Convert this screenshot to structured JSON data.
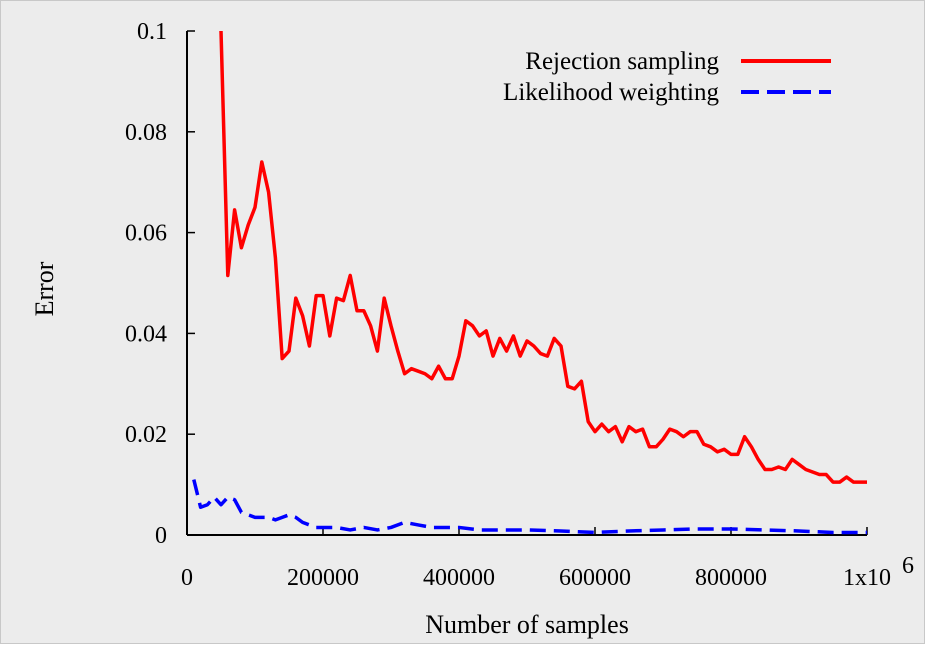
{
  "chart_data": {
    "type": "line",
    "title": "",
    "xlabel": "Number of samples",
    "ylabel": "Error",
    "xlim": [
      0,
      1000000
    ],
    "ylim": [
      0,
      0.1
    ],
    "x_ticks": [
      0,
      200000,
      400000,
      600000,
      800000,
      1000000
    ],
    "x_tick_labels": [
      "0",
      "200000",
      "400000",
      "600000",
      "800000",
      "1x10"
    ],
    "x_tick_last_exponent": "6",
    "y_ticks": [
      0,
      0.02,
      0.04,
      0.06,
      0.08,
      0.1
    ],
    "y_tick_labels": [
      "0",
      "0.02",
      "0.04",
      "0.06",
      "0.08",
      "0.1"
    ],
    "grid": false,
    "legend_position": "top-right",
    "series": [
      {
        "name": "Rejection sampling",
        "color": "#ff0000",
        "style": "solid",
        "x": [
          50000,
          60000,
          70000,
          80000,
          90000,
          100000,
          110000,
          120000,
          130000,
          140000,
          150000,
          160000,
          170000,
          180000,
          190000,
          200000,
          210000,
          220000,
          230000,
          240000,
          250000,
          260000,
          270000,
          280000,
          290000,
          300000,
          310000,
          320000,
          330000,
          340000,
          350000,
          360000,
          370000,
          380000,
          390000,
          400000,
          410000,
          420000,
          430000,
          440000,
          450000,
          460000,
          470000,
          480000,
          490000,
          500000,
          510000,
          520000,
          530000,
          540000,
          550000,
          560000,
          570000,
          580000,
          590000,
          600000,
          610000,
          620000,
          630000,
          640000,
          650000,
          660000,
          670000,
          680000,
          690000,
          700000,
          710000,
          720000,
          730000,
          740000,
          750000,
          760000,
          770000,
          780000,
          790000,
          800000,
          810000,
          820000,
          830000,
          840000,
          850000,
          860000,
          870000,
          880000,
          890000,
          900000,
          910000,
          920000,
          930000,
          940000,
          950000,
          960000,
          970000,
          980000,
          990000,
          1000000
        ],
        "y": [
          0.1,
          0.0515,
          0.0645,
          0.057,
          0.0615,
          0.065,
          0.074,
          0.068,
          0.055,
          0.035,
          0.0365,
          0.047,
          0.0435,
          0.0375,
          0.0475,
          0.0475,
          0.0395,
          0.047,
          0.0465,
          0.0515,
          0.0445,
          0.0445,
          0.0415,
          0.0365,
          0.047,
          0.0415,
          0.0365,
          0.032,
          0.033,
          0.0325,
          0.032,
          0.031,
          0.0335,
          0.031,
          0.031,
          0.0355,
          0.0425,
          0.0415,
          0.0395,
          0.0405,
          0.0355,
          0.039,
          0.0365,
          0.0395,
          0.0355,
          0.0385,
          0.0375,
          0.036,
          0.0355,
          0.039,
          0.0375,
          0.0295,
          0.029,
          0.0305,
          0.0225,
          0.0205,
          0.022,
          0.0205,
          0.0215,
          0.0185,
          0.0215,
          0.0205,
          0.021,
          0.0175,
          0.0175,
          0.019,
          0.021,
          0.0205,
          0.0195,
          0.0205,
          0.0205,
          0.018,
          0.0175,
          0.0165,
          0.017,
          0.016,
          0.016,
          0.0195,
          0.0175,
          0.015,
          0.013,
          0.013,
          0.0135,
          0.013,
          0.015,
          0.014,
          0.013,
          0.0125,
          0.012,
          0.012,
          0.0105,
          0.0105,
          0.0115,
          0.0105,
          0.0105,
          0.0105
        ]
      },
      {
        "name": "Likelihood weighting",
        "color": "#0000ff",
        "style": "dashed",
        "x": [
          10000,
          20000,
          30000,
          40000,
          50000,
          60000,
          70000,
          80000,
          90000,
          100000,
          110000,
          120000,
          130000,
          140000,
          150000,
          160000,
          170000,
          180000,
          190000,
          200000,
          220000,
          240000,
          260000,
          280000,
          300000,
          320000,
          340000,
          360000,
          380000,
          400000,
          430000,
          460000,
          500000,
          550000,
          600000,
          650000,
          700000,
          750000,
          800000,
          850000,
          900000,
          950000,
          1000000
        ],
        "y": [
          0.011,
          0.0055,
          0.006,
          0.0075,
          0.006,
          0.0075,
          0.007,
          0.0045,
          0.004,
          0.0035,
          0.0035,
          0.0035,
          0.003,
          0.0035,
          0.004,
          0.0035,
          0.0025,
          0.002,
          0.0015,
          0.0015,
          0.0015,
          0.001,
          0.0015,
          0.001,
          0.0015,
          0.0025,
          0.002,
          0.0015,
          0.0015,
          0.0015,
          0.001,
          0.001,
          0.001,
          0.0008,
          0.0005,
          0.0008,
          0.001,
          0.0012,
          0.0012,
          0.001,
          0.0008,
          0.0005,
          0.0005
        ]
      }
    ]
  }
}
